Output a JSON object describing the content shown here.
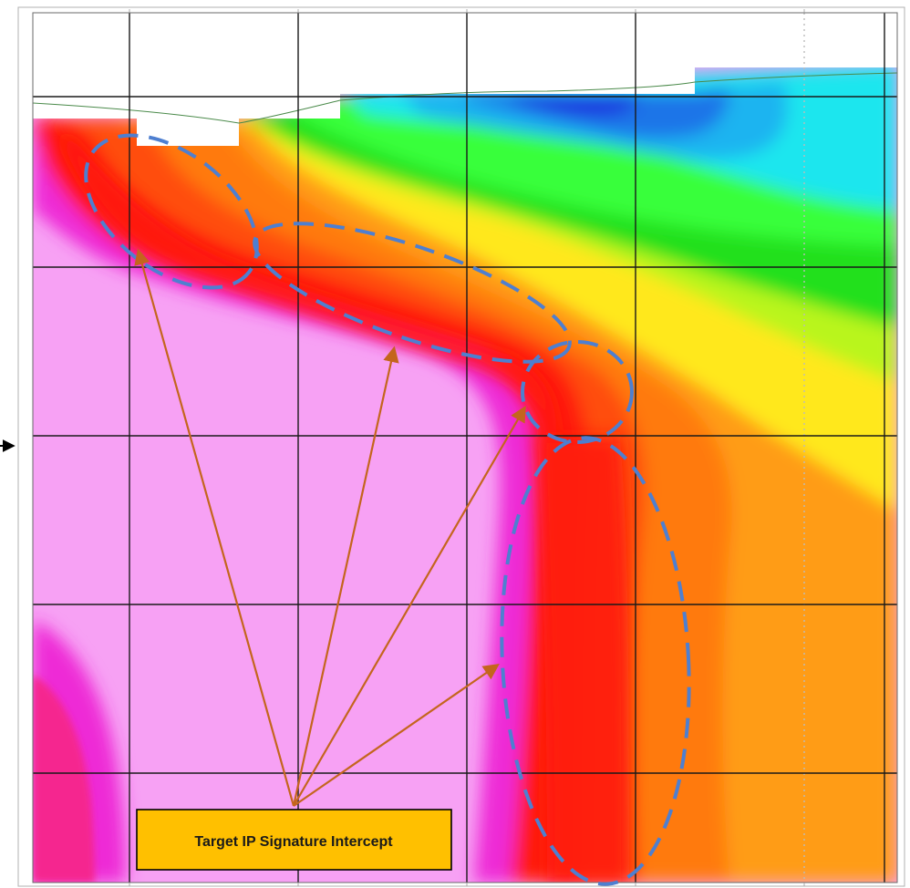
{
  "callout": {
    "label": "Target IP Signature Intercept",
    "box_fill": "#ffc000",
    "box_stroke": "#000000"
  },
  "colors": {
    "background_pink": "#f7a1f4",
    "magenta": "#ee2bd6",
    "deep_pink": "#f5278f",
    "red": "#ff1a0a",
    "red_orange": "#ff4d0a",
    "orange": "#ff7a0a",
    "light_orange": "#ff9c15",
    "yellow": "#ffe81a",
    "yellow_green": "#b9f51c",
    "green": "#22e01a",
    "bright_green": "#39ff3a",
    "cyan": "#1ae6ee",
    "light_blue": "#1ab4f0",
    "blue": "#1a74e8",
    "deep_blue": "#1a3de0",
    "grid_line": "#1a1a1a",
    "dashed_ellipse": "#4e7fd0",
    "arrow": "#c4651d"
  },
  "annotations": {
    "target_zones": [
      {
        "name": "zone-1"
      },
      {
        "name": "zone-2"
      },
      {
        "name": "zone-3"
      },
      {
        "name": "zone-4"
      }
    ],
    "arrows": [
      {
        "name": "arrow-to-zone-1"
      },
      {
        "name": "arrow-to-zone-2"
      },
      {
        "name": "arrow-to-zone-3"
      },
      {
        "name": "arrow-to-zone-4"
      }
    ],
    "side_marker": "left-edge-arrow-icon"
  }
}
